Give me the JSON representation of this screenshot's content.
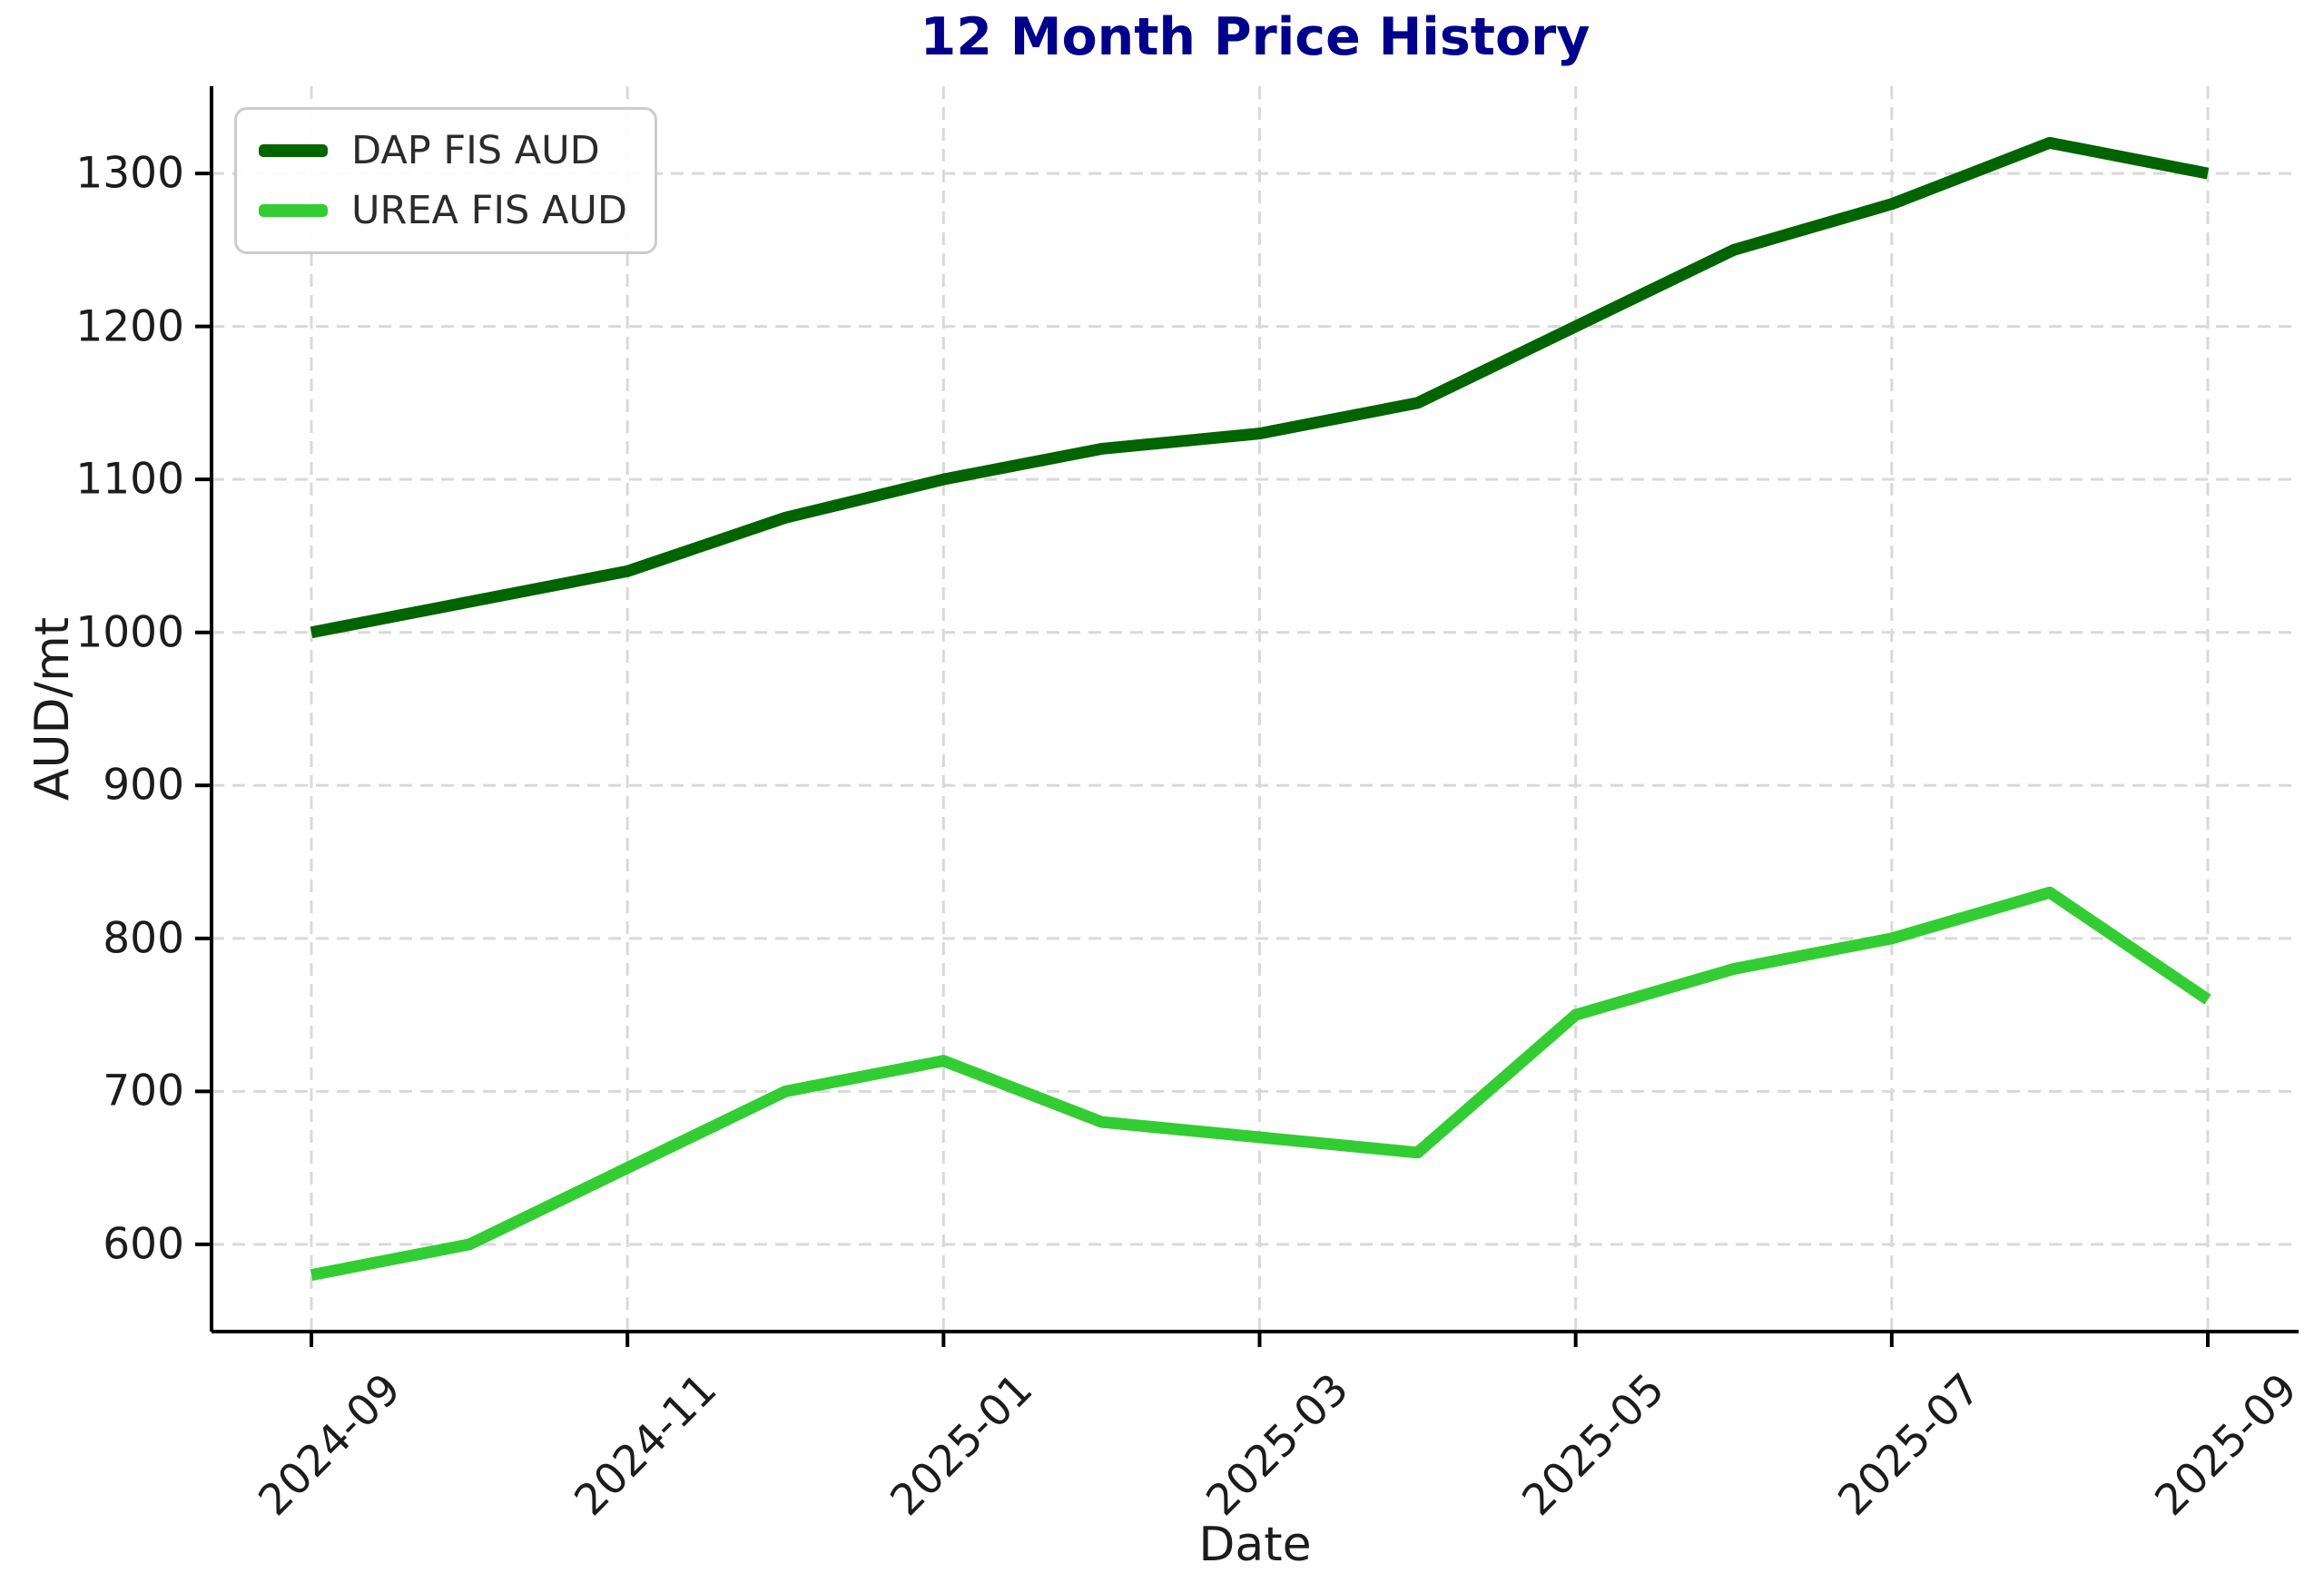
{
  "title": "12 Month Price History",
  "xlabel": "Date",
  "ylabel": "AUD/mt",
  "colors": {
    "background": "#ffffff",
    "title": "#00008B",
    "axis": "#000000",
    "grid": "#d9d9d9",
    "tick_text": "#1c1c1c",
    "dap_line": "#006400",
    "urea_line": "#32CD32"
  },
  "legend": {
    "entries": [
      {
        "label": "DAP FIS AUD",
        "color": "#006400"
      },
      {
        "label": "UREA FIS AUD",
        "color": "#32CD32"
      }
    ]
  },
  "chart_data": {
    "type": "line",
    "title": "12 Month Price History",
    "xlabel": "Date",
    "ylabel": "AUD/mt",
    "x": [
      "2024-09",
      "2024-10",
      "2024-11",
      "2024-12",
      "2025-01",
      "2025-02",
      "2025-03",
      "2025-04",
      "2025-05",
      "2025-06",
      "2025-07",
      "2025-08",
      "2025-09"
    ],
    "series": [
      {
        "name": "DAP FIS AUD",
        "color": "#006400",
        "values": [
          1000,
          1020,
          1040,
          1075,
          1100,
          1120,
          1130,
          1150,
          1200,
          1250,
          1280,
          1320,
          1300
        ]
      },
      {
        "name": "UREA FIS AUD",
        "color": "#32CD32",
        "values": [
          580,
          600,
          650,
          700,
          720,
          680,
          670,
          660,
          750,
          780,
          800,
          830,
          760
        ]
      }
    ],
    "ylim": [
      543,
      1357
    ],
    "yticks": [
      600,
      700,
      800,
      900,
      1000,
      1100,
      1200,
      1300
    ],
    "xtick_indices": [
      0,
      2,
      4,
      6,
      8,
      10,
      12
    ],
    "xtick_labels": [
      "2024-09",
      "2024-11",
      "2025-01",
      "2025-03",
      "2025-05",
      "2025-07",
      "2025-09"
    ],
    "grid": true,
    "grid_style": "dashed",
    "legend_position": "upper left"
  }
}
